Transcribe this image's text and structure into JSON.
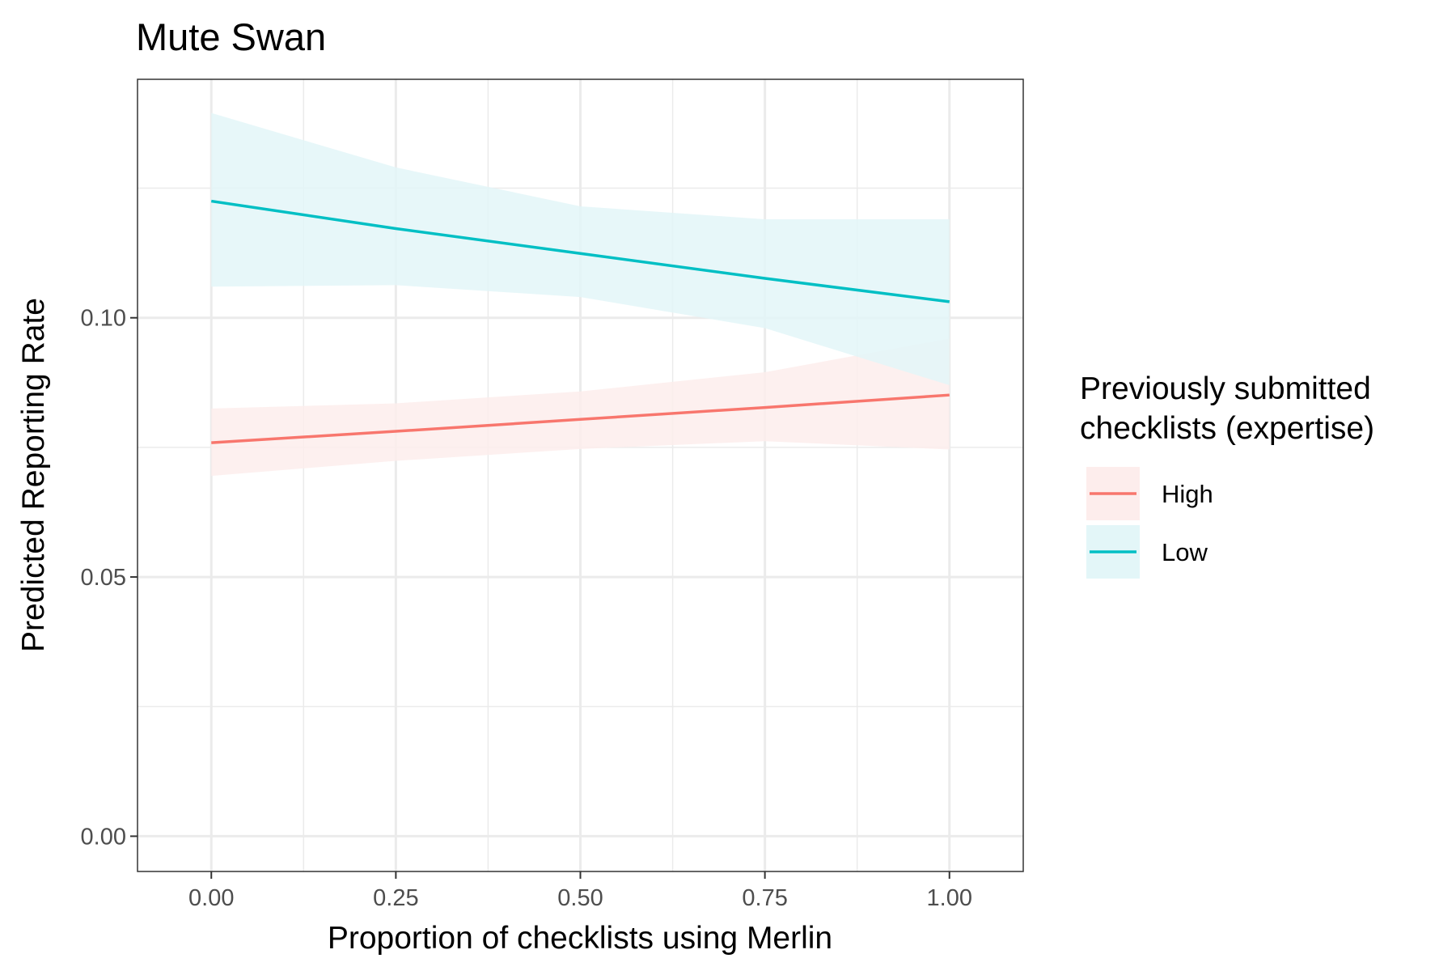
{
  "chart_data": {
    "type": "line",
    "title": "Mute Swan",
    "xlabel": "Proportion of checklists using Merlin",
    "ylabel": "Predicted Reporting Rate",
    "xlim": [
      -0.1,
      1.1
    ],
    "ylim": [
      -0.0068,
      0.146
    ],
    "x_ticks": [
      0.0,
      0.25,
      0.5,
      0.75,
      1.0
    ],
    "x_tick_labels": [
      "0.00",
      "0.25",
      "0.50",
      "0.75",
      "1.00"
    ],
    "y_ticks": [
      0.0,
      0.05,
      0.1
    ],
    "y_tick_labels": [
      "0.00",
      "0.05",
      "0.10"
    ],
    "grid": true,
    "legend": {
      "title_lines": [
        "Previously submitted",
        "checklists (expertise)"
      ],
      "placement": "right"
    },
    "series": [
      {
        "name": "High",
        "color": "#F8766D",
        "fill": "#FDEDEC",
        "x": [
          0,
          0.25,
          0.5,
          0.75,
          1.0
        ],
        "y": [
          0.0759,
          0.0781,
          0.0804,
          0.0827,
          0.0851
        ],
        "lower": [
          0.0695,
          0.0724,
          0.0747,
          0.0762,
          0.0746
        ],
        "upper": [
          0.0825,
          0.0835,
          0.0858,
          0.0895,
          0.096
        ]
      },
      {
        "name": "Low",
        "color": "#00BFC4",
        "fill": "#E3F6F8",
        "x": [
          0,
          0.25,
          0.5,
          0.75,
          1.0
        ],
        "y": [
          0.1225,
          0.1172,
          0.1124,
          0.1076,
          0.1031
        ],
        "lower": [
          0.106,
          0.1063,
          0.104,
          0.098,
          0.087
        ],
        "upper": [
          0.1395,
          0.129,
          0.1215,
          0.119,
          0.119
        ]
      }
    ]
  }
}
